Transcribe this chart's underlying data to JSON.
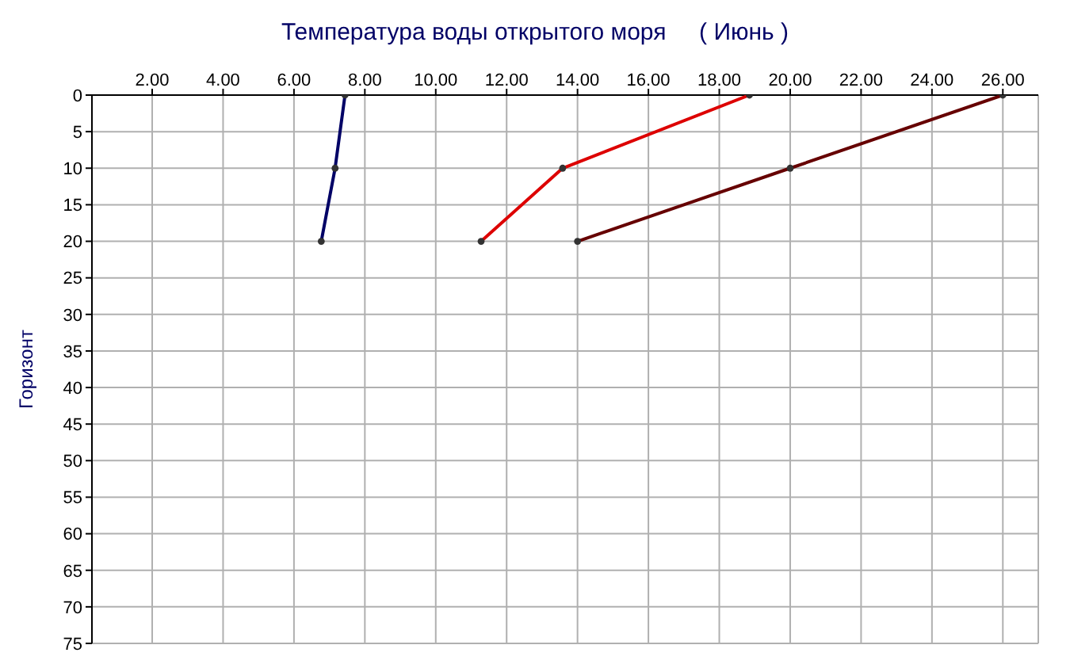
{
  "chart_data": {
    "type": "line",
    "title": "Температура воды открытого моря     ( Июнь )",
    "ylabel": "Горизонт",
    "xlim": [
      0.3,
      27
    ],
    "ylim": [
      75,
      0
    ],
    "xticks": [
      {
        "value": 2,
        "label": "2.00"
      },
      {
        "value": 4,
        "label": "4.00"
      },
      {
        "value": 6,
        "label": "6.00"
      },
      {
        "value": 8,
        "label": "8.00"
      },
      {
        "value": 10,
        "label": "10.00"
      },
      {
        "value": 12,
        "label": "12.00"
      },
      {
        "value": 14,
        "label": "14.00"
      },
      {
        "value": 16,
        "label": "16.00"
      },
      {
        "value": 18,
        "label": "18.00"
      },
      {
        "value": 20,
        "label": "20.00"
      },
      {
        "value": 22,
        "label": "22.00"
      },
      {
        "value": 24,
        "label": "24.00"
      },
      {
        "value": 26,
        "label": "26.00"
      }
    ],
    "yticks": [
      0,
      5,
      10,
      15,
      20,
      25,
      30,
      35,
      40,
      45,
      50,
      55,
      60,
      65,
      70,
      75
    ],
    "series": [
      {
        "color": "#000066",
        "x": [
          7.44,
          7.16,
          6.77
        ],
        "values": [
          0,
          10,
          20
        ]
      },
      {
        "color": "#dd0000",
        "x": [
          18.85,
          13.58,
          11.28
        ],
        "values": [
          0,
          10,
          20
        ]
      },
      {
        "color": "#660000",
        "x": [
          26,
          20,
          14
        ],
        "values": [
          0,
          10,
          20
        ]
      }
    ],
    "grid": true,
    "marker": "circle",
    "line_style": "solid",
    "legend": false
  }
}
